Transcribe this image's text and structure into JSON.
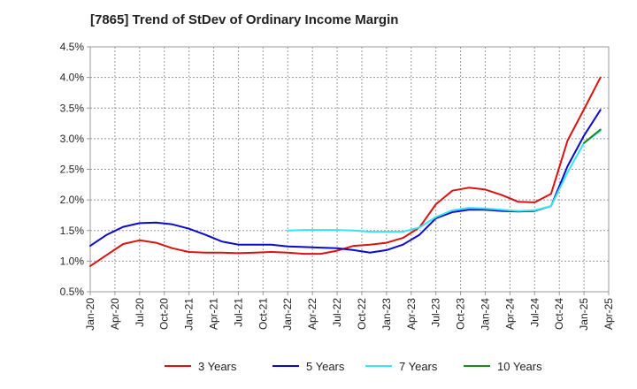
{
  "chart_data": {
    "type": "line",
    "title": "[7865]  Trend of StDev of Ordinary Income Margin",
    "xlabel": "",
    "ylabel": "",
    "y_tick_labels": [
      "0.5%",
      "1.0%",
      "1.5%",
      "2.0%",
      "2.5%",
      "3.0%",
      "3.5%",
      "4.0%",
      "4.5%"
    ],
    "ylim": [
      0.5,
      4.5
    ],
    "x_tick_labels": [
      "Jan-20",
      "Apr-20",
      "Jul-20",
      "Oct-20",
      "Jan-21",
      "Apr-21",
      "Jul-21",
      "Oct-21",
      "Jan-22",
      "Apr-22",
      "Jul-22",
      "Oct-22",
      "Jan-23",
      "Apr-23",
      "Jul-23",
      "Oct-23",
      "Jan-24",
      "Apr-24",
      "Jul-24",
      "Oct-24",
      "Jan-25",
      "Apr-25"
    ],
    "grid": true,
    "legend_position": "bottom",
    "series": [
      {
        "name": "3 Years",
        "color": "#dd1111",
        "points": [
          [
            "Jan-20",
            0.92
          ],
          [
            "Mar-20",
            1.1
          ],
          [
            "May-20",
            1.28
          ],
          [
            "Jul-20",
            1.34
          ],
          [
            "Sep-20",
            1.3
          ],
          [
            "Nov-20",
            1.21
          ],
          [
            "Jan-21",
            1.15
          ],
          [
            "Mar-21",
            1.14
          ],
          [
            "May-21",
            1.14
          ],
          [
            "Jul-21",
            1.13
          ],
          [
            "Sep-21",
            1.14
          ],
          [
            "Nov-21",
            1.15
          ],
          [
            "Jan-22",
            1.14
          ],
          [
            "Mar-22",
            1.12
          ],
          [
            "May-22",
            1.12
          ],
          [
            "Jul-22",
            1.17
          ],
          [
            "Sep-22",
            1.25
          ],
          [
            "Nov-22",
            1.27
          ],
          [
            "Jan-23",
            1.3
          ],
          [
            "Mar-23",
            1.38
          ],
          [
            "May-23",
            1.55
          ],
          [
            "Jul-23",
            1.93
          ],
          [
            "Sep-23",
            2.15
          ],
          [
            "Nov-23",
            2.2
          ],
          [
            "Jan-24",
            2.17
          ],
          [
            "Mar-24",
            2.08
          ],
          [
            "May-24",
            1.97
          ],
          [
            "Jul-24",
            1.96
          ],
          [
            "Sep-24",
            2.1
          ],
          [
            "Nov-24",
            2.97
          ],
          [
            "Jan-25",
            3.48
          ],
          [
            "Mar-25",
            4.0
          ]
        ]
      },
      {
        "name": "5 Years",
        "color": "#0a0acc",
        "points": [
          [
            "Jan-20",
            1.25
          ],
          [
            "Mar-20",
            1.43
          ],
          [
            "May-20",
            1.56
          ],
          [
            "Jul-20",
            1.62
          ],
          [
            "Sep-20",
            1.63
          ],
          [
            "Nov-20",
            1.6
          ],
          [
            "Jan-21",
            1.53
          ],
          [
            "Mar-21",
            1.43
          ],
          [
            "May-21",
            1.32
          ],
          [
            "Jul-21",
            1.27
          ],
          [
            "Sep-21",
            1.27
          ],
          [
            "Nov-21",
            1.27
          ],
          [
            "Jan-22",
            1.24
          ],
          [
            "Mar-22",
            1.23
          ],
          [
            "May-22",
            1.22
          ],
          [
            "Jul-22",
            1.21
          ],
          [
            "Sep-22",
            1.18
          ],
          [
            "Nov-22",
            1.14
          ],
          [
            "Jan-23",
            1.18
          ],
          [
            "Mar-23",
            1.27
          ],
          [
            "May-23",
            1.43
          ],
          [
            "Jul-23",
            1.7
          ],
          [
            "Sep-23",
            1.8
          ],
          [
            "Nov-23",
            1.84
          ],
          [
            "Jan-24",
            1.84
          ],
          [
            "Mar-24",
            1.82
          ],
          [
            "May-24",
            1.81
          ],
          [
            "Jul-24",
            1.82
          ],
          [
            "Sep-24",
            1.9
          ],
          [
            "Nov-24",
            2.55
          ],
          [
            "Jan-25",
            3.05
          ],
          [
            "Mar-25",
            3.47
          ]
        ]
      },
      {
        "name": "7 Years",
        "color": "#33e6f0",
        "points": [
          [
            "Jan-22",
            1.5
          ],
          [
            "Mar-22",
            1.51
          ],
          [
            "May-22",
            1.51
          ],
          [
            "Jul-22",
            1.51
          ],
          [
            "Sep-22",
            1.5
          ],
          [
            "Nov-22",
            1.48
          ],
          [
            "Jan-23",
            1.48
          ],
          [
            "Mar-23",
            1.48
          ],
          [
            "May-23",
            1.55
          ],
          [
            "Jul-23",
            1.72
          ],
          [
            "Sep-23",
            1.83
          ],
          [
            "Nov-23",
            1.87
          ],
          [
            "Jan-24",
            1.86
          ],
          [
            "Mar-24",
            1.84
          ],
          [
            "May-24",
            1.82
          ],
          [
            "Jul-24",
            1.83
          ],
          [
            "Sep-24",
            1.9
          ],
          [
            "Nov-24",
            2.45
          ],
          [
            "Jan-25",
            2.93
          ],
          [
            "Mar-25",
            3.13
          ]
        ]
      },
      {
        "name": "10 Years",
        "color": "#1a8a1a",
        "points": [
          [
            "Jan-25",
            2.93
          ],
          [
            "Mar-25",
            3.15
          ]
        ]
      }
    ]
  }
}
